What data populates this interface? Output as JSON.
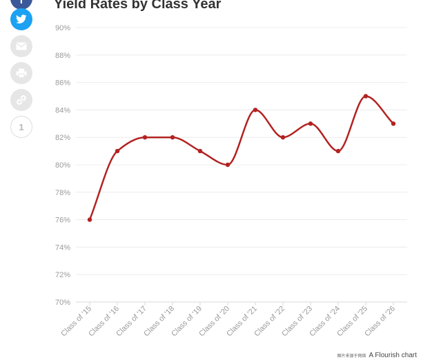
{
  "share": {
    "count": "1",
    "buttons": [
      {
        "name": "facebook",
        "icon": "facebook-icon",
        "color": "#3b5998"
      },
      {
        "name": "twitter",
        "icon": "twitter-icon",
        "color": "#1da1f2"
      },
      {
        "name": "email",
        "icon": "email-icon",
        "color": "#e6e6e6"
      },
      {
        "name": "print",
        "icon": "print-icon",
        "color": "#e6e6e6"
      },
      {
        "name": "link",
        "icon": "link-icon",
        "color": "#e6e6e6"
      }
    ]
  },
  "footer": {
    "watermark": "图片来源于网络",
    "credit": "A Flourish chart"
  },
  "chart_data": {
    "type": "line",
    "title": "Yield Rates by Class Year",
    "xlabel": "",
    "ylabel": "",
    "categories": [
      "Class of '15",
      "Class of '16",
      "Class of '17",
      "Class of '18",
      "Class of '19",
      "Class of '20",
      "Class of '21",
      "Class of '22",
      "Class of '23",
      "Class of '24",
      "Class of '25",
      "Class of '26"
    ],
    "series": [
      {
        "values": [
          76,
          81,
          82,
          82,
          81,
          80,
          84,
          82,
          83,
          81,
          85,
          83
        ]
      }
    ],
    "ylim": [
      70,
      90
    ],
    "yticks": [
      70,
      72,
      74,
      76,
      78,
      80,
      82,
      84,
      86,
      88,
      90
    ],
    "ytick_suffix": "%",
    "grid": true,
    "legend": "none",
    "line_color": "#b22222",
    "curve": "smooth"
  }
}
